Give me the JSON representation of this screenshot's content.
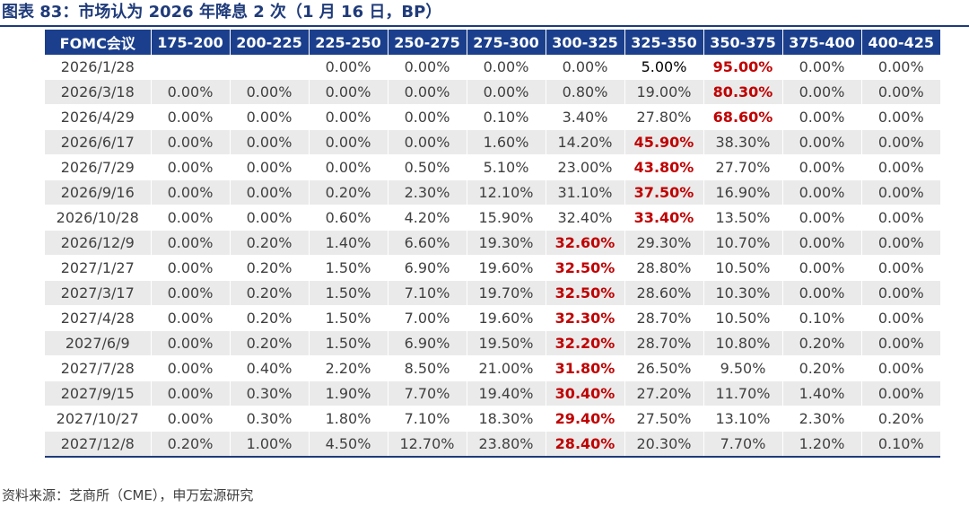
{
  "title": "图表 83：市场认为 2026 年降息 2 次（1 月 16 日，BP）",
  "source": "资料来源：芝商所（CME），申万宏源研究",
  "colors": {
    "title": "#1F3B7A",
    "header_bg": "#1B3F8C",
    "highlight": "#C00000",
    "stripe": "#EAEAEA"
  },
  "table": {
    "headers": [
      "FOMC会议",
      "175-200",
      "200-225",
      "225-250",
      "250-275",
      "275-300",
      "300-325",
      "325-350",
      "350-375",
      "375-400",
      "400-425"
    ],
    "rows": [
      [
        "2026/1/28",
        "",
        "",
        "0.00%",
        "0.00%",
        "0.00%",
        "0.00%",
        "5.00%",
        "95.00%",
        "0.00%",
        "0.00%"
      ],
      [
        "2026/3/18",
        "0.00%",
        "0.00%",
        "0.00%",
        "0.00%",
        "0.00%",
        "0.80%",
        "19.00%",
        "80.30%",
        "0.00%",
        "0.00%"
      ],
      [
        "2026/4/29",
        "0.00%",
        "0.00%",
        "0.00%",
        "0.00%",
        "0.10%",
        "3.40%",
        "27.80%",
        "68.60%",
        "0.00%",
        "0.00%"
      ],
      [
        "2026/6/17",
        "0.00%",
        "0.00%",
        "0.00%",
        "0.00%",
        "1.60%",
        "14.20%",
        "45.90%",
        "38.30%",
        "0.00%",
        "0.00%"
      ],
      [
        "2026/7/29",
        "0.00%",
        "0.00%",
        "0.00%",
        "0.50%",
        "5.10%",
        "23.00%",
        "43.80%",
        "27.70%",
        "0.00%",
        "0.00%"
      ],
      [
        "2026/9/16",
        "0.00%",
        "0.00%",
        "0.20%",
        "2.30%",
        "12.10%",
        "31.10%",
        "37.50%",
        "16.90%",
        "0.00%",
        "0.00%"
      ],
      [
        "2026/10/28",
        "0.00%",
        "0.00%",
        "0.60%",
        "4.20%",
        "15.90%",
        "32.40%",
        "33.40%",
        "13.50%",
        "0.00%",
        "0.00%"
      ],
      [
        "2026/12/9",
        "0.00%",
        "0.20%",
        "1.40%",
        "6.60%",
        "19.30%",
        "32.60%",
        "29.30%",
        "10.70%",
        "0.00%",
        "0.00%"
      ],
      [
        "2027/1/27",
        "0.00%",
        "0.20%",
        "1.50%",
        "6.90%",
        "19.60%",
        "32.50%",
        "28.80%",
        "10.50%",
        "0.00%",
        "0.00%"
      ],
      [
        "2027/3/17",
        "0.00%",
        "0.20%",
        "1.50%",
        "7.10%",
        "19.70%",
        "32.50%",
        "28.60%",
        "10.30%",
        "0.00%",
        "0.00%"
      ],
      [
        "2027/4/28",
        "0.00%",
        "0.20%",
        "1.50%",
        "7.00%",
        "19.60%",
        "32.30%",
        "28.70%",
        "10.50%",
        "0.10%",
        "0.00%"
      ],
      [
        "2027/6/9",
        "0.00%",
        "0.20%",
        "1.50%",
        "6.90%",
        "19.50%",
        "32.20%",
        "28.70%",
        "10.80%",
        "0.20%",
        "0.00%"
      ],
      [
        "2027/7/28",
        "0.00%",
        "0.40%",
        "2.20%",
        "8.50%",
        "21.00%",
        "31.80%",
        "26.50%",
        "9.50%",
        "0.20%",
        "0.00%"
      ],
      [
        "2027/9/15",
        "0.00%",
        "0.30%",
        "1.90%",
        "7.70%",
        "19.40%",
        "30.40%",
        "27.20%",
        "11.70%",
        "1.40%",
        "0.00%"
      ],
      [
        "2027/10/27",
        "0.00%",
        "0.30%",
        "1.80%",
        "7.10%",
        "18.30%",
        "29.40%",
        "27.50%",
        "13.10%",
        "2.30%",
        "0.20%"
      ],
      [
        "2027/12/8",
        "0.20%",
        "1.00%",
        "4.50%",
        "12.70%",
        "23.80%",
        "28.40%",
        "20.30%",
        "7.70%",
        "1.20%",
        "0.10%"
      ]
    ],
    "highlight_cells": [
      [
        0,
        8
      ],
      [
        1,
        8
      ],
      [
        2,
        8
      ],
      [
        3,
        7
      ],
      [
        4,
        7
      ],
      [
        5,
        7
      ],
      [
        6,
        7
      ],
      [
        7,
        6
      ],
      [
        8,
        6
      ],
      [
        9,
        6
      ],
      [
        10,
        6
      ],
      [
        11,
        6
      ],
      [
        12,
        6
      ],
      [
        13,
        6
      ],
      [
        14,
        6
      ],
      [
        15,
        6
      ]
    ],
    "dark_cells": [
      [
        0,
        7
      ]
    ]
  }
}
